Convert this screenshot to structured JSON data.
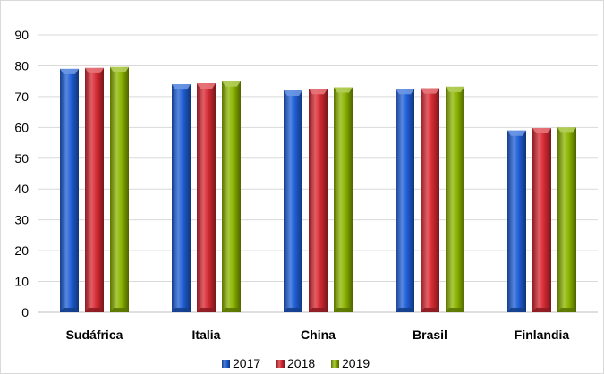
{
  "chart_data": {
    "type": "bar",
    "categories": [
      "Sudáfrica",
      "Italia",
      "China",
      "Brasil",
      "Finlandia"
    ],
    "series": [
      {
        "name": "2017",
        "color": "#1f5fd6",
        "values": [
          79,
          74,
          72,
          72.5,
          59
        ]
      },
      {
        "name": "2018",
        "color": "#d72a33",
        "values": [
          79.3,
          74.3,
          72.5,
          72.7,
          59.8
        ]
      },
      {
        "name": "2019",
        "color": "#8cb400",
        "values": [
          79.6,
          75,
          73,
          73.2,
          60
        ]
      }
    ],
    "ylim": [
      0,
      90
    ],
    "yticks": [
      0,
      10,
      20,
      30,
      40,
      50,
      60,
      70,
      80,
      90
    ],
    "grid": true,
    "legend": "bottom",
    "title": "",
    "xlabel": "",
    "ylabel": ""
  }
}
